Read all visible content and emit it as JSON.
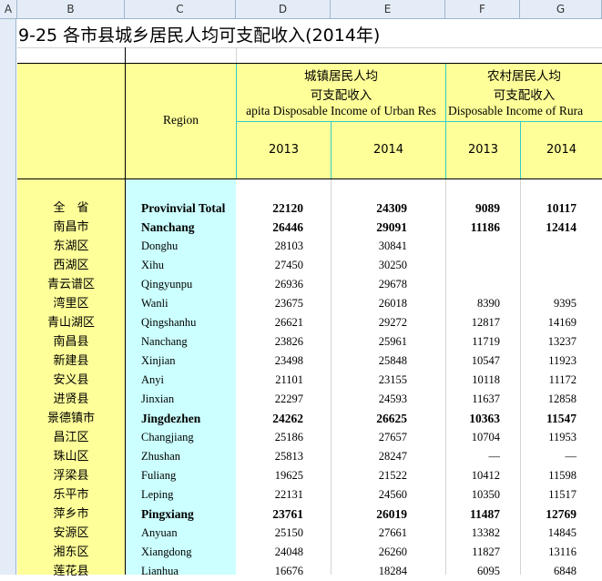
{
  "columns": [
    "A",
    "B",
    "C",
    "D",
    "E",
    "F",
    "G"
  ],
  "title": "9-25  各市县城乡居民人均可支配收入(2014年)",
  "header": {
    "region": "Region",
    "urban_cn_line1": "城镇居民人均",
    "urban_cn_line2": "可支配收入",
    "urban_en": "apita Disposable Income of Urban Res",
    "rural_cn_line1": "农村居民人均",
    "rural_cn_line2": "可支配收入",
    "rural_en": "Disposable Income of Rura",
    "year_d": "2013",
    "year_e": "2014",
    "year_f": "2013",
    "year_g": "2014"
  },
  "rows": [
    {
      "cn": "全　省",
      "en": "Provinvial Total",
      "d": "22120",
      "e": "24309",
      "f": "9089",
      "g": "10117",
      "bold": true
    },
    {
      "cn": "南昌市",
      "en": "Nanchang",
      "d": "26446",
      "e": "29091",
      "f": "11186",
      "g": "12414",
      "bold": true
    },
    {
      "cn": "东湖区",
      "en": "Donghu",
      "d": "28103",
      "e": "30841",
      "f": "",
      "g": "",
      "bold": false
    },
    {
      "cn": "西湖区",
      "en": "Xihu",
      "d": "27450",
      "e": "30250",
      "f": "",
      "g": "",
      "bold": false
    },
    {
      "cn": "青云谱区",
      "en": "Qingyunpu",
      "d": "26936",
      "e": "29678",
      "f": "",
      "g": "",
      "bold": false
    },
    {
      "cn": "湾里区",
      "en": "Wanli",
      "d": "23675",
      "e": "26018",
      "f": "8390",
      "g": "9395",
      "bold": false
    },
    {
      "cn": "青山湖区",
      "en": "Qingshanhu",
      "d": "26621",
      "e": "29272",
      "f": "12817",
      "g": "14169",
      "bold": false
    },
    {
      "cn": "南昌县",
      "en": "Nanchang",
      "d": "23826",
      "e": "25961",
      "f": "11719",
      "g": "13237",
      "bold": false
    },
    {
      "cn": "新建县",
      "en": "Xinjian",
      "d": "23498",
      "e": "25848",
      "f": "10547",
      "g": "11923",
      "bold": false
    },
    {
      "cn": "安义县",
      "en": "Anyi",
      "d": "21101",
      "e": "23155",
      "f": "10118",
      "g": "11172",
      "bold": false
    },
    {
      "cn": "进贤县",
      "en": "Jinxian",
      "d": "22297",
      "e": "24593",
      "f": "11637",
      "g": "12858",
      "bold": false
    },
    {
      "cn": "景德镇市",
      "en": "Jingdezhen",
      "d": "24262",
      "e": "26625",
      "f": "10363",
      "g": "11547",
      "bold": true
    },
    {
      "cn": "昌江区",
      "en": "Changjiang",
      "d": "25186",
      "e": "27657",
      "f": "10704",
      "g": "11953",
      "bold": false
    },
    {
      "cn": "珠山区",
      "en": "Zhushan",
      "d": "25813",
      "e": "28247",
      "f": "—",
      "g": "—",
      "bold": false
    },
    {
      "cn": "浮梁县",
      "en": "Fuliang",
      "d": "19625",
      "e": "21522",
      "f": "10412",
      "g": "11598",
      "bold": false
    },
    {
      "cn": "乐平市",
      "en": "Leping",
      "d": "22131",
      "e": "24560",
      "f": "10350",
      "g": "11517",
      "bold": false
    },
    {
      "cn": "萍乡市",
      "en": "Pingxiang",
      "d": "23761",
      "e": "26019",
      "f": "11487",
      "g": "12769",
      "bold": true
    },
    {
      "cn": "安源区",
      "en": "Anyuan",
      "d": "25150",
      "e": "27661",
      "f": "13382",
      "g": "14845",
      "bold": false
    },
    {
      "cn": "湘东区",
      "en": "Xiangdong",
      "d": "24048",
      "e": "26260",
      "f": "11827",
      "g": "13116",
      "bold": false
    },
    {
      "cn": "莲花县",
      "en": "Lianhua",
      "d": "16676",
      "e": "18284",
      "f": "6095",
      "g": "6848",
      "bold": false
    }
  ]
}
